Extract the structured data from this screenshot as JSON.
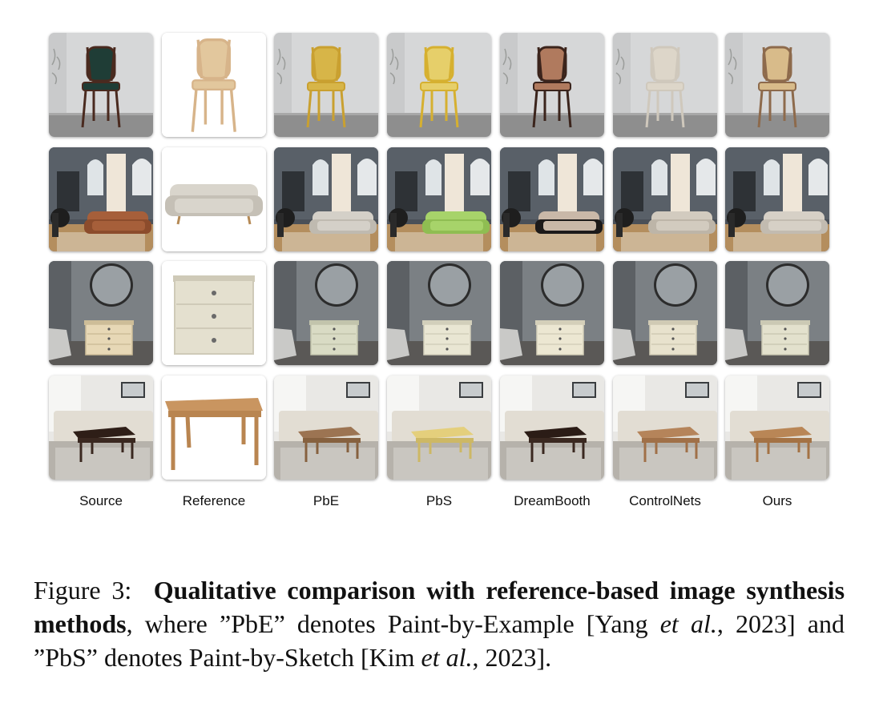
{
  "columns": [
    "Source",
    "Reference",
    "PbE",
    "PbS",
    "DreamBooth",
    "ControlNets",
    "Ours"
  ],
  "rows": [
    {
      "object": "chair",
      "cells": [
        {
          "scene": "wall",
          "obj": "chair",
          "color": "#4a2a1f",
          "accent": "#1f3d36"
        },
        {
          "scene": "white",
          "obj": "chair",
          "color": "#d7b48a",
          "accent": "#e2c79d"
        },
        {
          "scene": "wall",
          "obj": "chair",
          "color": "#c9a030",
          "accent": "#d7b548"
        },
        {
          "scene": "wall",
          "obj": "chair",
          "color": "#d6b030",
          "accent": "#e6cf6a"
        },
        {
          "scene": "wall",
          "obj": "chair",
          "color": "#3b241c",
          "accent": "#b07a5e"
        },
        {
          "scene": "wall",
          "obj": "chair",
          "color": "#cfc8bc",
          "accent": "#ddd6c9"
        },
        {
          "scene": "wall",
          "obj": "chair",
          "color": "#8d6a4c",
          "accent": "#d8bb8a"
        }
      ]
    },
    {
      "object": "sofa",
      "cells": [
        {
          "scene": "room",
          "obj": "sofa",
          "color": "#a65f3a",
          "accent": "#8c4c2c"
        },
        {
          "scene": "white",
          "obj": "sofa",
          "color": "#d9d5cc",
          "accent": "#c5c0b6"
        },
        {
          "scene": "room",
          "obj": "sofa",
          "color": "#d4d0c8",
          "accent": "#bfbab0"
        },
        {
          "scene": "room",
          "obj": "sofa",
          "color": "#a7d36a",
          "accent": "#8fbd52"
        },
        {
          "scene": "room",
          "obj": "sofa",
          "color": "#c9b8a8",
          "accent": "#1c1a1a"
        },
        {
          "scene": "room",
          "obj": "sofa",
          "color": "#d2cbbf",
          "accent": "#bdb5a8"
        },
        {
          "scene": "room",
          "obj": "sofa",
          "color": "#d6d0c6",
          "accent": "#c2bbb0"
        }
      ]
    },
    {
      "object": "dresser",
      "cells": [
        {
          "scene": "bedroom",
          "obj": "dresser",
          "color": "#e7d8b6",
          "accent": "#cdbd98"
        },
        {
          "scene": "white",
          "obj": "dresser",
          "color": "#e4e0cf",
          "accent": "#cfcab8"
        },
        {
          "scene": "bedroom",
          "obj": "dresser",
          "color": "#d9dbc4",
          "accent": "#c2c4ac"
        },
        {
          "scene": "bedroom",
          "obj": "dresser",
          "color": "#e9e6d3",
          "accent": "#d2cfbb"
        },
        {
          "scene": "bedroom",
          "obj": "dresser",
          "color": "#ece7d2",
          "accent": "#d4cfb9"
        },
        {
          "scene": "bedroom",
          "obj": "dresser",
          "color": "#e8e2cd",
          "accent": "#d0cab4"
        },
        {
          "scene": "bedroom",
          "obj": "dresser",
          "color": "#e3e1cd",
          "accent": "#cbc9b4"
        }
      ]
    },
    {
      "object": "table",
      "cells": [
        {
          "scene": "living",
          "obj": "table",
          "color": "#2e1e17",
          "accent": "#3a2820"
        },
        {
          "scene": "white",
          "obj": "table",
          "color": "#c99560",
          "accent": "#b98550"
        },
        {
          "scene": "living",
          "obj": "table",
          "color": "#9c7452",
          "accent": "#86613f"
        },
        {
          "scene": "living",
          "obj": "table",
          "color": "#e4cf7c",
          "accent": "#cdb865"
        },
        {
          "scene": "living",
          "obj": "table",
          "color": "#2b1c16",
          "accent": "#3a2820"
        },
        {
          "scene": "living",
          "obj": "table",
          "color": "#b5845a",
          "accent": "#a07048"
        },
        {
          "scene": "living",
          "obj": "table",
          "color": "#b98656",
          "accent": "#a47244"
        }
      ]
    }
  ],
  "caption": {
    "label": "Figure 3:",
    "bold": "Qualitative comparison with reference-based image synthesis methods",
    "part1": ", where ”PbE” denotes Paint-by-Example [Yang ",
    "cite1_italic": "et al.",
    "part2": ", 2023] and ”PbS” denotes Paint-by-Sketch [Kim ",
    "cite2_italic": "et al.",
    "part3": ", 2023]."
  }
}
